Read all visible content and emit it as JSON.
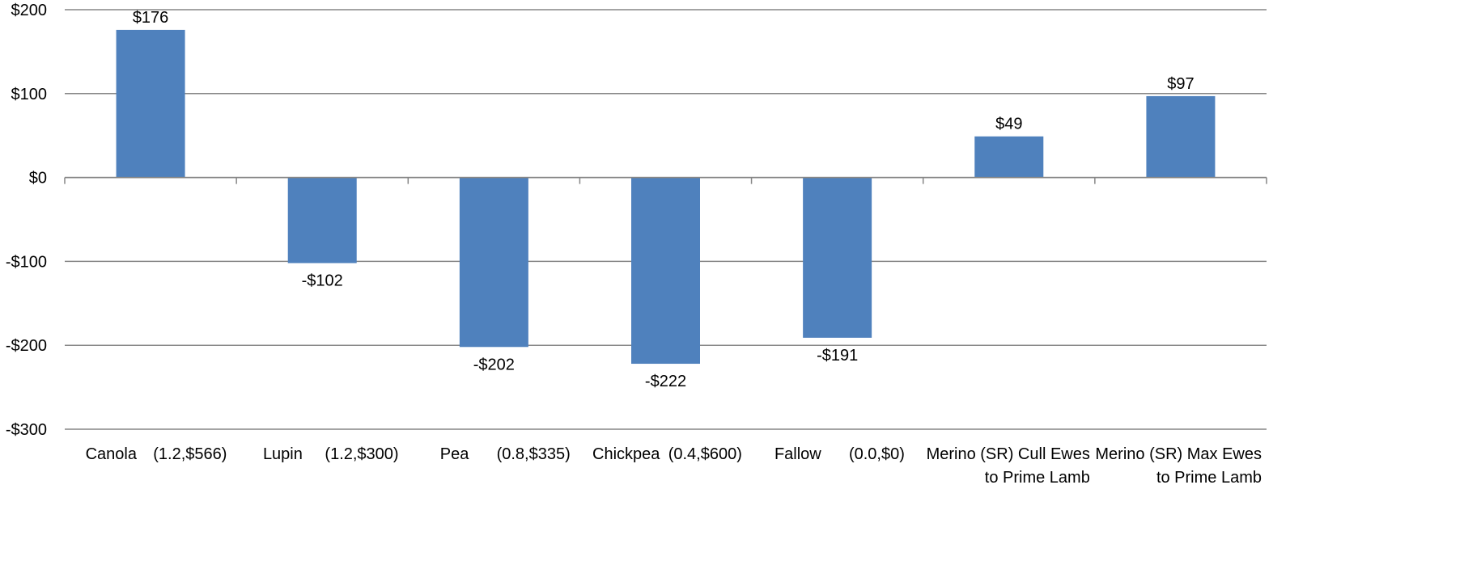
{
  "chart_data": {
    "type": "bar",
    "title": "",
    "xlabel": "",
    "ylabel": "",
    "ylim": [
      -300,
      200
    ],
    "yticks": [
      200,
      100,
      0,
      -100,
      -200,
      -300
    ],
    "ytick_labels": [
      "$200",
      "$100",
      "$0",
      "-$100",
      "-$200",
      "-$300"
    ],
    "grid": true,
    "legend": "none",
    "bar_color": "#4F81BD",
    "categories": [
      [
        "Canola",
        "(1.2,$566)"
      ],
      [
        "Lupin",
        "(1.2,$300)"
      ],
      [
        "Pea",
        "(0.8,$335)"
      ],
      [
        "Chickpea",
        "(0.4,$600)"
      ],
      [
        "Fallow",
        "(0.0,$0)"
      ],
      [
        "Merino (SR) Cull Ewes",
        "to Prime Lamb"
      ],
      [
        "Merino (SR) Max Ewes",
        "to Prime Lamb"
      ]
    ],
    "values": [
      176,
      -102,
      -202,
      -222,
      -191,
      49,
      97
    ],
    "value_labels": [
      "$176",
      "-$102",
      "-$202",
      "-$222",
      "-$191",
      "$49",
      "$97"
    ]
  }
}
